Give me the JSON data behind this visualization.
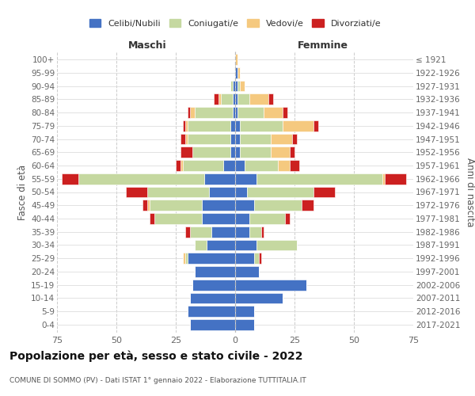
{
  "age_groups": [
    "100+",
    "95-99",
    "90-94",
    "85-89",
    "80-84",
    "75-79",
    "70-74",
    "65-69",
    "60-64",
    "55-59",
    "50-54",
    "45-49",
    "40-44",
    "35-39",
    "30-34",
    "25-29",
    "20-24",
    "15-19",
    "10-14",
    "5-9",
    "0-4"
  ],
  "birth_years": [
    "≤ 1921",
    "1922-1926",
    "1927-1931",
    "1932-1936",
    "1937-1941",
    "1942-1946",
    "1947-1951",
    "1952-1956",
    "1957-1961",
    "1962-1966",
    "1967-1971",
    "1972-1976",
    "1977-1981",
    "1982-1986",
    "1987-1991",
    "1992-1996",
    "1997-2001",
    "2002-2006",
    "2007-2011",
    "2012-2016",
    "2017-2021"
  ],
  "males": {
    "celibi": [
      0,
      0,
      1,
      1,
      1,
      2,
      2,
      2,
      5,
      13,
      11,
      14,
      14,
      10,
      12,
      20,
      17,
      18,
      19,
      20,
      19
    ],
    "coniugati": [
      0,
      0,
      1,
      5,
      16,
      18,
      18,
      16,
      17,
      53,
      26,
      22,
      20,
      9,
      5,
      1,
      0,
      0,
      0,
      0,
      0
    ],
    "vedovi": [
      0,
      0,
      0,
      1,
      2,
      1,
      1,
      0,
      1,
      0,
      0,
      1,
      0,
      0,
      0,
      1,
      0,
      0,
      0,
      0,
      0
    ],
    "divorziati": [
      0,
      0,
      0,
      2,
      1,
      1,
      2,
      5,
      2,
      7,
      9,
      2,
      2,
      2,
      0,
      0,
      0,
      0,
      0,
      0,
      0
    ]
  },
  "females": {
    "nubili": [
      0,
      1,
      1,
      1,
      1,
      2,
      2,
      2,
      4,
      9,
      5,
      8,
      6,
      6,
      9,
      8,
      10,
      30,
      20,
      8,
      8
    ],
    "coniugate": [
      0,
      0,
      1,
      5,
      11,
      18,
      13,
      13,
      14,
      53,
      28,
      20,
      15,
      5,
      17,
      2,
      0,
      0,
      0,
      0,
      0
    ],
    "vedove": [
      1,
      1,
      2,
      8,
      8,
      13,
      9,
      8,
      5,
      1,
      0,
      0,
      0,
      0,
      0,
      0,
      0,
      0,
      0,
      0,
      0
    ],
    "divorziate": [
      0,
      0,
      0,
      2,
      2,
      2,
      2,
      2,
      4,
      9,
      9,
      5,
      2,
      1,
      0,
      1,
      0,
      0,
      0,
      0,
      0
    ]
  },
  "colors": {
    "celibi": "#4472c4",
    "coniugati": "#c5d8a0",
    "vedovi": "#f5c97f",
    "divorziati": "#cc2020"
  },
  "xlim": 75,
  "title": "Popolazione per età, sesso e stato civile - 2022",
  "subtitle": "COMUNE DI SOMMO (PV) - Dati ISTAT 1° gennaio 2022 - Elaborazione TUTTITALIA.IT",
  "legend_labels": [
    "Celibi/Nubili",
    "Coniugati/e",
    "Vedovi/e",
    "Divorziati/e"
  ],
  "ylabel_left": "Fasce di età",
  "ylabel_right": "Anni di nascita",
  "xlabel_left": "Maschi",
  "xlabel_right": "Femmine"
}
